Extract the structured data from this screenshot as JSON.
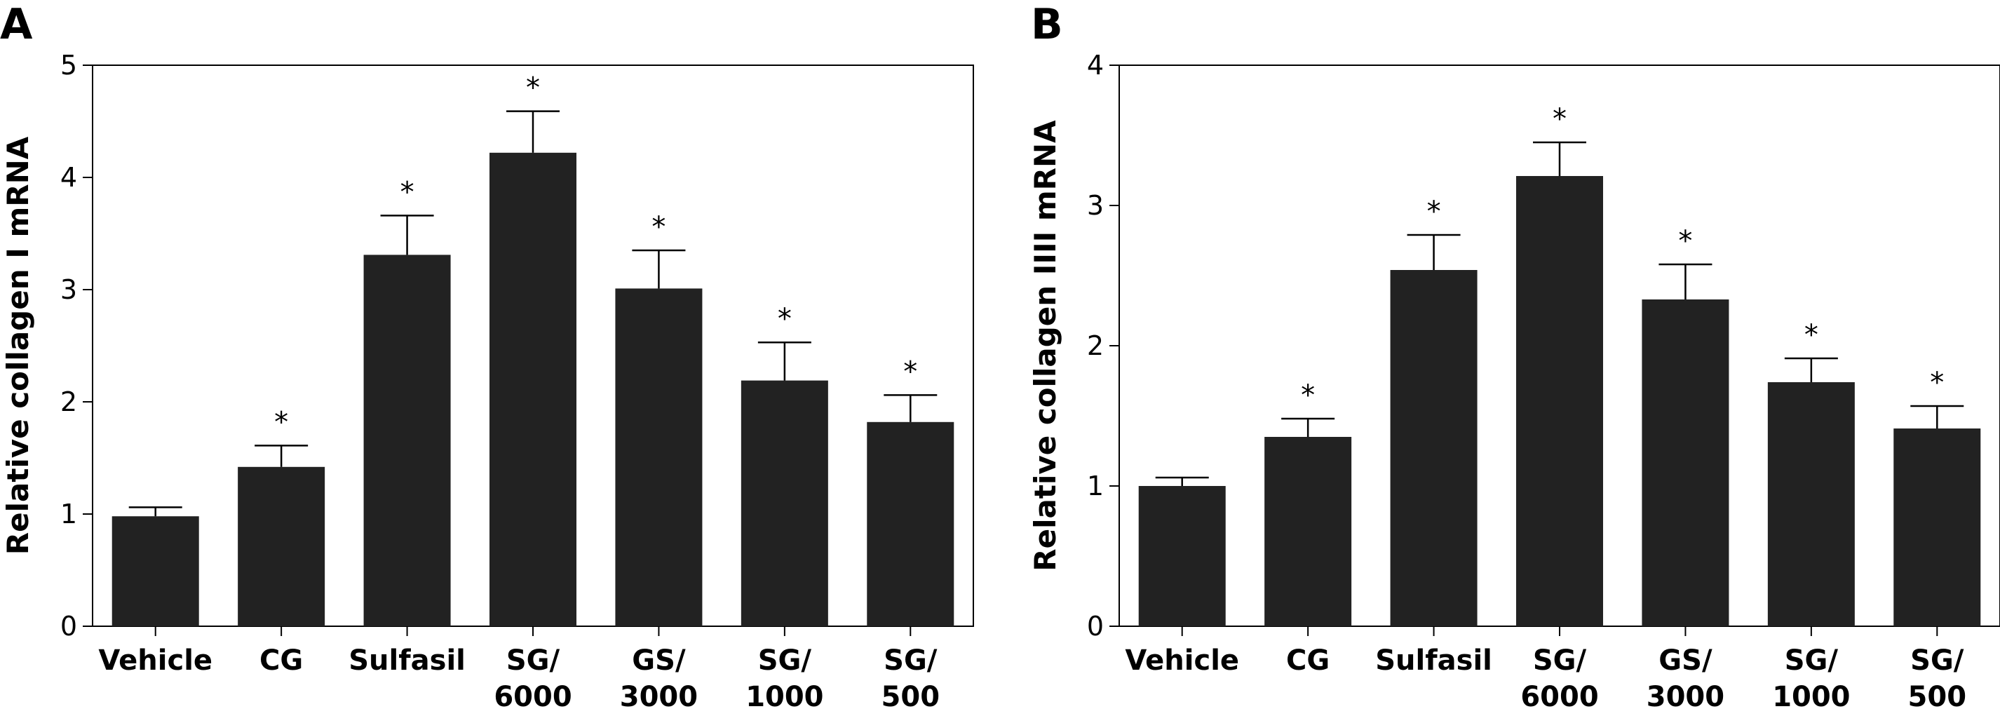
{
  "colors": {
    "bar_fill": "#222222",
    "axis": "#000000",
    "background": "#ffffff"
  },
  "chart_data": [
    {
      "type": "bar",
      "panel": "A",
      "xlabel": "",
      "ylabel": "Relative collagen I mRNA",
      "ylim": [
        0,
        5
      ],
      "yticks": [
        0,
        1,
        2,
        3,
        4,
        5
      ],
      "grid": false,
      "legend": "none",
      "categories": [
        [
          "Vehicle"
        ],
        [
          "CG"
        ],
        [
          "Sulfasil"
        ],
        [
          "SG/",
          "6000"
        ],
        [
          "GS/",
          "3000"
        ],
        [
          "SG/",
          "1000"
        ],
        [
          "SG/",
          "500"
        ]
      ],
      "values": [
        0.98,
        1.42,
        3.31,
        4.22,
        3.01,
        2.19,
        1.82
      ],
      "errors": [
        0.08,
        0.19,
        0.35,
        0.37,
        0.34,
        0.34,
        0.24
      ],
      "annotations": [
        "",
        "*",
        "*",
        "*",
        "*",
        "*",
        "*"
      ]
    },
    {
      "type": "bar",
      "panel": "B",
      "xlabel": "",
      "ylabel": "Relative collagen IIII mRNA",
      "ylim": [
        0,
        4
      ],
      "yticks": [
        0,
        1,
        2,
        3,
        4
      ],
      "grid": false,
      "legend": "none",
      "categories": [
        [
          "Vehicle"
        ],
        [
          "CG"
        ],
        [
          "Sulfasil"
        ],
        [
          "SG/",
          "6000"
        ],
        [
          "GS/",
          "3000"
        ],
        [
          "SG/",
          "1000"
        ],
        [
          "SG/",
          "500"
        ]
      ],
      "values": [
        1.0,
        1.35,
        2.54,
        3.21,
        2.33,
        1.74,
        1.41
      ],
      "errors": [
        0.06,
        0.13,
        0.25,
        0.24,
        0.25,
        0.17,
        0.16
      ],
      "annotations": [
        "",
        "*",
        "*",
        "*",
        "*",
        "*",
        "*"
      ]
    }
  ]
}
